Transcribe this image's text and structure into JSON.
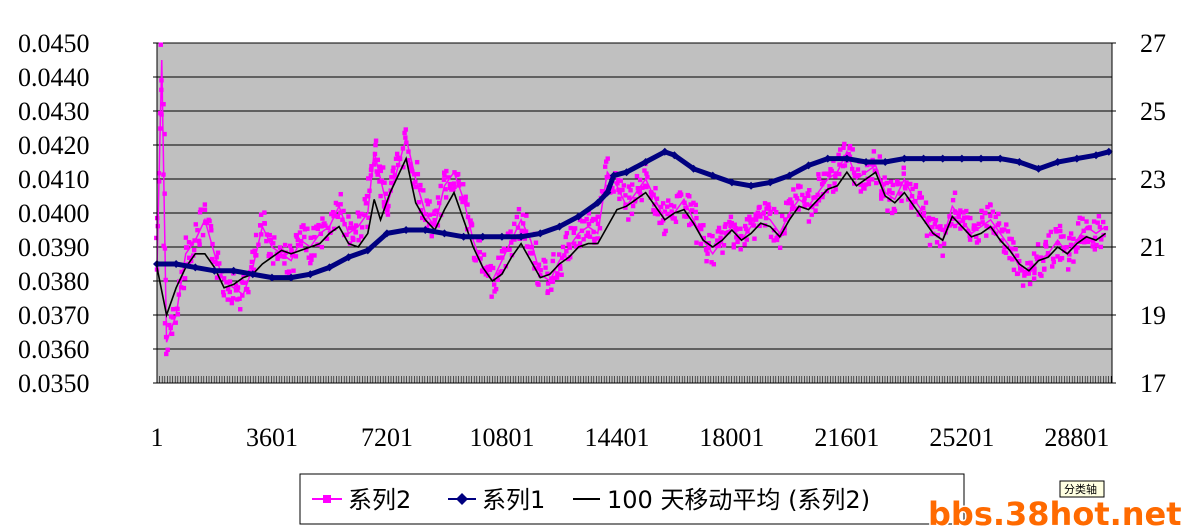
{
  "chart_data": {
    "type": "line",
    "y_left": {
      "ticks": [
        "0.0450",
        "0.0440",
        "0.0430",
        "0.0420",
        "0.0410",
        "0.0400",
        "0.0390",
        "0.0380",
        "0.0370",
        "0.0360",
        "0.0350"
      ],
      "range": [
        0.035,
        0.045
      ]
    },
    "y_right": {
      "ticks": [
        "27",
        "25",
        "23",
        "21",
        "19",
        "17"
      ],
      "range": [
        17,
        27
      ]
    },
    "x": {
      "ticks": [
        "1",
        "3601",
        "7201",
        "10801",
        "14401",
        "18001",
        "21601",
        "25201",
        "28801"
      ],
      "range": [
        1,
        29900
      ]
    },
    "grid": true,
    "legend_position": "bottom",
    "series": [
      {
        "name": "系列2",
        "axis": "left",
        "color": "#ff00ff",
        "marker": "square",
        "points": [
          [
            1,
            0.0384
          ],
          [
            150,
            0.0445
          ],
          [
            300,
            0.0362
          ],
          [
            600,
            0.037
          ],
          [
            900,
            0.0388
          ],
          [
            1200,
            0.0392
          ],
          [
            1500,
            0.0398
          ],
          [
            1800,
            0.0388
          ],
          [
            2100,
            0.038
          ],
          [
            2400,
            0.0378
          ],
          [
            2700,
            0.0376
          ],
          [
            3000,
            0.0384
          ],
          [
            3300,
            0.0396
          ],
          [
            3600,
            0.039
          ],
          [
            3900,
            0.0388
          ],
          [
            4200,
            0.0386
          ],
          [
            4500,
            0.0392
          ],
          [
            4800,
            0.039
          ],
          [
            5100,
            0.0394
          ],
          [
            5400,
            0.0396
          ],
          [
            5700,
            0.0402
          ],
          [
            6000,
            0.0394
          ],
          [
            6300,
            0.0396
          ],
          [
            6600,
            0.04
          ],
          [
            6800,
            0.0418
          ],
          [
            7000,
            0.041
          ],
          [
            7200,
            0.0402
          ],
          [
            7500,
            0.0412
          ],
          [
            7800,
            0.0422
          ],
          [
            8100,
            0.041
          ],
          [
            8400,
            0.04
          ],
          [
            8700,
            0.0396
          ],
          [
            9000,
            0.0408
          ],
          [
            9300,
            0.0412
          ],
          [
            9600,
            0.0404
          ],
          [
            9900,
            0.0392
          ],
          [
            10200,
            0.0384
          ],
          [
            10500,
            0.038
          ],
          [
            10800,
            0.0386
          ],
          [
            11100,
            0.0392
          ],
          [
            11400,
            0.0398
          ],
          [
            11700,
            0.0392
          ],
          [
            12000,
            0.0382
          ],
          [
            12300,
            0.038
          ],
          [
            12600,
            0.0386
          ],
          [
            12900,
            0.039
          ],
          [
            13200,
            0.0394
          ],
          [
            13500,
            0.0396
          ],
          [
            13800,
            0.0394
          ],
          [
            14100,
            0.0412
          ],
          [
            14400,
            0.0408
          ],
          [
            14700,
            0.0402
          ],
          [
            15000,
            0.0406
          ],
          [
            15300,
            0.041
          ],
          [
            15600,
            0.0404
          ],
          [
            15900,
            0.0398
          ],
          [
            16200,
            0.04
          ],
          [
            16500,
            0.0404
          ],
          [
            16800,
            0.0398
          ],
          [
            17100,
            0.0392
          ],
          [
            17400,
            0.0388
          ],
          [
            17700,
            0.0392
          ],
          [
            18000,
            0.0396
          ],
          [
            18300,
            0.0392
          ],
          [
            18600,
            0.0396
          ],
          [
            18900,
            0.04
          ],
          [
            19200,
            0.0398
          ],
          [
            19500,
            0.0394
          ],
          [
            19800,
            0.04
          ],
          [
            20100,
            0.0404
          ],
          [
            20400,
            0.0402
          ],
          [
            20700,
            0.0406
          ],
          [
            21000,
            0.041
          ],
          [
            21300,
            0.0412
          ],
          [
            21600,
            0.0418
          ],
          [
            21900,
            0.041
          ],
          [
            22200,
            0.0412
          ],
          [
            22500,
            0.0414
          ],
          [
            22800,
            0.0406
          ],
          [
            23100,
            0.0404
          ],
          [
            23400,
            0.041
          ],
          [
            23700,
            0.0404
          ],
          [
            24000,
            0.04
          ],
          [
            24300,
            0.0394
          ],
          [
            24600,
            0.0392
          ],
          [
            24900,
            0.0402
          ],
          [
            25200,
            0.0398
          ],
          [
            25500,
            0.0394
          ],
          [
            25800,
            0.0396
          ],
          [
            26100,
            0.0398
          ],
          [
            26400,
            0.0394
          ],
          [
            26700,
            0.039
          ],
          [
            27000,
            0.0384
          ],
          [
            27300,
            0.0382
          ],
          [
            27600,
            0.0386
          ],
          [
            27900,
            0.0388
          ],
          [
            28200,
            0.0392
          ],
          [
            28500,
            0.0388
          ],
          [
            28800,
            0.0392
          ],
          [
            29100,
            0.0396
          ],
          [
            29400,
            0.0394
          ],
          [
            29700,
            0.0396
          ]
        ]
      },
      {
        "name": "系列1",
        "axis": "right",
        "color": "#000080",
        "marker": "diamond",
        "points": [
          [
            1,
            20.5
          ],
          [
            600,
            20.5
          ],
          [
            1200,
            20.4
          ],
          [
            1800,
            20.3
          ],
          [
            2400,
            20.3
          ],
          [
            3000,
            20.2
          ],
          [
            3600,
            20.1
          ],
          [
            4200,
            20.1
          ],
          [
            4800,
            20.2
          ],
          [
            5400,
            20.4
          ],
          [
            6000,
            20.7
          ],
          [
            6600,
            20.9
          ],
          [
            7200,
            21.4
          ],
          [
            7800,
            21.5
          ],
          [
            8400,
            21.5
          ],
          [
            9000,
            21.4
          ],
          [
            9600,
            21.3
          ],
          [
            10200,
            21.3
          ],
          [
            10800,
            21.3
          ],
          [
            11400,
            21.3
          ],
          [
            12000,
            21.4
          ],
          [
            12600,
            21.6
          ],
          [
            13200,
            21.9
          ],
          [
            13800,
            22.3
          ],
          [
            14100,
            22.6
          ],
          [
            14300,
            23.1
          ],
          [
            14700,
            23.2
          ],
          [
            15300,
            23.5
          ],
          [
            15900,
            23.8
          ],
          [
            16200,
            23.7
          ],
          [
            16800,
            23.3
          ],
          [
            17400,
            23.1
          ],
          [
            18000,
            22.9
          ],
          [
            18600,
            22.8
          ],
          [
            19200,
            22.9
          ],
          [
            19800,
            23.1
          ],
          [
            20400,
            23.4
          ],
          [
            21000,
            23.6
          ],
          [
            21600,
            23.6
          ],
          [
            22200,
            23.5
          ],
          [
            22800,
            23.5
          ],
          [
            23400,
            23.6
          ],
          [
            24000,
            23.6
          ],
          [
            24600,
            23.6
          ],
          [
            25200,
            23.6
          ],
          [
            25800,
            23.6
          ],
          [
            26400,
            23.6
          ],
          [
            27000,
            23.5
          ],
          [
            27600,
            23.3
          ],
          [
            28200,
            23.5
          ],
          [
            28800,
            23.6
          ],
          [
            29400,
            23.7
          ],
          [
            29800,
            23.8
          ]
        ]
      },
      {
        "name": "100 天移动平均 (系列2)",
        "axis": "left",
        "color": "#000000",
        "marker": "none",
        "points": [
          [
            1,
            0.0384
          ],
          [
            300,
            0.037
          ],
          [
            600,
            0.0378
          ],
          [
            900,
            0.0384
          ],
          [
            1200,
            0.0388
          ],
          [
            1500,
            0.0388
          ],
          [
            1800,
            0.0384
          ],
          [
            2100,
            0.0378
          ],
          [
            2400,
            0.0379
          ],
          [
            2700,
            0.0381
          ],
          [
            3000,
            0.0382
          ],
          [
            3300,
            0.0385
          ],
          [
            3600,
            0.0387
          ],
          [
            3900,
            0.0389
          ],
          [
            4200,
            0.0388
          ],
          [
            4500,
            0.0389
          ],
          [
            4800,
            0.039
          ],
          [
            5100,
            0.0391
          ],
          [
            5400,
            0.0394
          ],
          [
            5700,
            0.0396
          ],
          [
            6000,
            0.0391
          ],
          [
            6300,
            0.039
          ],
          [
            6600,
            0.0394
          ],
          [
            6800,
            0.0404
          ],
          [
            7000,
            0.0398
          ],
          [
            7300,
            0.0406
          ],
          [
            7600,
            0.0412
          ],
          [
            7800,
            0.0416
          ],
          [
            8100,
            0.0403
          ],
          [
            8400,
            0.0398
          ],
          [
            8700,
            0.0395
          ],
          [
            9000,
            0.0401
          ],
          [
            9300,
            0.0406
          ],
          [
            9600,
            0.0398
          ],
          [
            9900,
            0.039
          ],
          [
            10200,
            0.0384
          ],
          [
            10500,
            0.038
          ],
          [
            10800,
            0.0382
          ],
          [
            11100,
            0.0387
          ],
          [
            11400,
            0.0391
          ],
          [
            11700,
            0.0386
          ],
          [
            12000,
            0.0381
          ],
          [
            12300,
            0.0382
          ],
          [
            12600,
            0.0385
          ],
          [
            12900,
            0.0387
          ],
          [
            13200,
            0.039
          ],
          [
            13500,
            0.0391
          ],
          [
            13800,
            0.0391
          ],
          [
            14100,
            0.0396
          ],
          [
            14400,
            0.0401
          ],
          [
            14700,
            0.0402
          ],
          [
            15000,
            0.0404
          ],
          [
            15300,
            0.0406
          ],
          [
            15600,
            0.0402
          ],
          [
            15900,
            0.0398
          ],
          [
            16200,
            0.04
          ],
          [
            16500,
            0.0401
          ],
          [
            16800,
            0.0397
          ],
          [
            17100,
            0.0392
          ],
          [
            17400,
            0.039
          ],
          [
            17700,
            0.0392
          ],
          [
            18000,
            0.0395
          ],
          [
            18300,
            0.0392
          ],
          [
            18600,
            0.0394
          ],
          [
            18900,
            0.0397
          ],
          [
            19200,
            0.0396
          ],
          [
            19500,
            0.0393
          ],
          [
            19800,
            0.0398
          ],
          [
            20100,
            0.0402
          ],
          [
            20400,
            0.0401
          ],
          [
            20700,
            0.0404
          ],
          [
            21000,
            0.0407
          ],
          [
            21300,
            0.0408
          ],
          [
            21600,
            0.0412
          ],
          [
            21900,
            0.0408
          ],
          [
            22200,
            0.041
          ],
          [
            22500,
            0.0412
          ],
          [
            22800,
            0.0405
          ],
          [
            23100,
            0.0403
          ],
          [
            23400,
            0.0406
          ],
          [
            23700,
            0.0402
          ],
          [
            24000,
            0.0398
          ],
          [
            24300,
            0.0394
          ],
          [
            24600,
            0.0392
          ],
          [
            24900,
            0.0399
          ],
          [
            25200,
            0.0396
          ],
          [
            25500,
            0.0393
          ],
          [
            25800,
            0.0394
          ],
          [
            26100,
            0.0396
          ],
          [
            26400,
            0.0392
          ],
          [
            26700,
            0.0389
          ],
          [
            27000,
            0.0385
          ],
          [
            27300,
            0.0383
          ],
          [
            27600,
            0.0386
          ],
          [
            27900,
            0.0387
          ],
          [
            28200,
            0.039
          ],
          [
            28500,
            0.0388
          ],
          [
            28800,
            0.0391
          ],
          [
            29100,
            0.0393
          ],
          [
            29400,
            0.0392
          ],
          [
            29700,
            0.0394
          ]
        ]
      }
    ],
    "legend": [
      "系列2",
      "系列1",
      "100 天移动平均 (系列2)"
    ]
  },
  "badge": {
    "label": "分类轴"
  },
  "watermark": {
    "text": "bbs.38hot.net"
  }
}
